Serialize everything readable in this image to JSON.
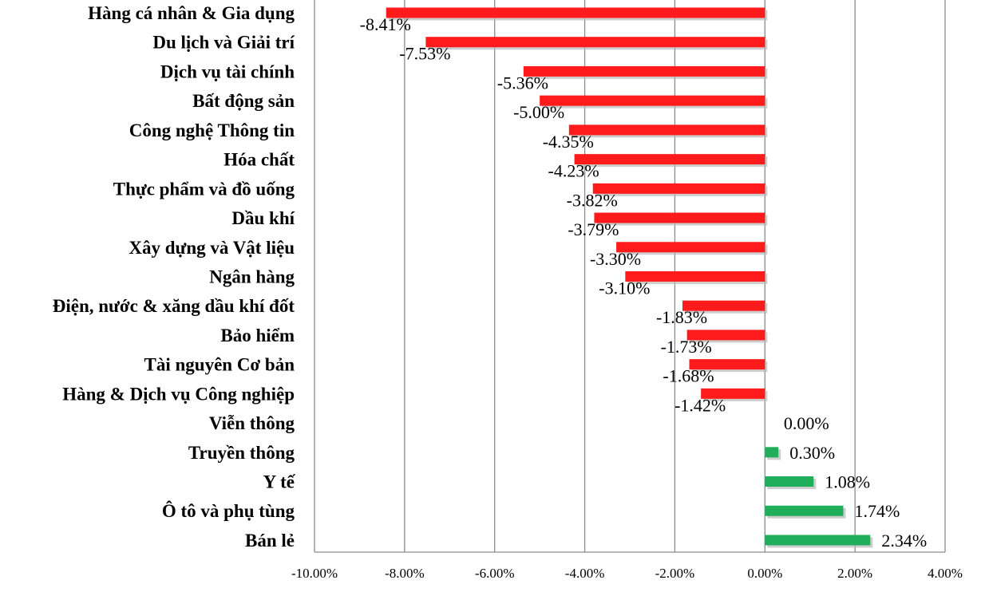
{
  "chart_data": {
    "type": "bar",
    "orientation": "horizontal",
    "title": "",
    "xlabel": "",
    "ylabel": "",
    "xlim": [
      -10,
      4
    ],
    "x_ticks": [
      -10,
      -8,
      -6,
      -4,
      -2,
      0,
      2,
      4
    ],
    "x_tick_labels": [
      "-10.00%",
      "-8.00%",
      "-6.00%",
      "-4.00%",
      "-2.00%",
      "0.00%",
      "2.00%",
      "4.00%"
    ],
    "grid": "vertical",
    "legend": "none",
    "colors": {
      "negative": "#ff1b1b",
      "positive": "#1fae5a"
    },
    "categories": [
      "Hàng cá nhân & Gia dụng",
      "Du lịch và Giải trí",
      "Dịch vụ tài chính",
      "Bất động sản",
      "Công nghệ Thông tin",
      "Hóa chất",
      "Thực phẩm và đồ uống",
      "Dầu khí",
      "Xây dựng và Vật liệu",
      "Ngân hàng",
      "Điện, nước & xăng dầu khí đốt",
      "Bảo hiểm",
      "Tài nguyên Cơ bản",
      "Hàng & Dịch vụ Công nghiệp",
      "Viễn thông",
      "Truyền thông",
      "Y tế",
      "Ô tô và phụ tùng",
      "Bán lẻ"
    ],
    "values": [
      -8.41,
      -7.53,
      -5.36,
      -5.0,
      -4.35,
      -4.23,
      -3.82,
      -3.79,
      -3.3,
      -3.1,
      -1.83,
      -1.73,
      -1.68,
      -1.42,
      0.0,
      0.3,
      1.08,
      1.74,
      2.34
    ],
    "value_labels": [
      "-8.41%",
      "-7.53%",
      "-5.36%",
      "-5.00%",
      "-4.35%",
      "-4.23%",
      "-3.82%",
      "-3.79%",
      "-3.30%",
      "-3.10%",
      "-1.83%",
      "-1.73%",
      "-1.68%",
      "-1.42%",
      "0.00%",
      "0.30%",
      "1.08%",
      "1.74%",
      "2.34%"
    ]
  }
}
